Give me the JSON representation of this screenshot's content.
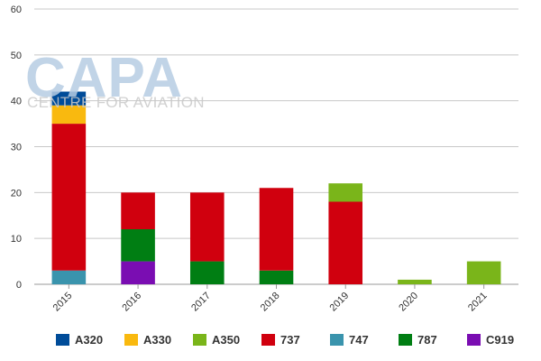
{
  "watermark": {
    "logo": "CAPA",
    "tagline": "CENTRE FOR AVIATION"
  },
  "chart_data": {
    "type": "bar",
    "stacked": true,
    "categories": [
      "2015",
      "2016",
      "2017",
      "2018",
      "2019",
      "2020",
      "2021"
    ],
    "ylim": [
      0,
      60
    ],
    "yticks": [
      0,
      10,
      20,
      30,
      40,
      50,
      60
    ],
    "grid": true,
    "legend_position": "bottom",
    "series": [
      {
        "name": "747",
        "color": "#3a94ad",
        "values": [
          3,
          0,
          0,
          0,
          0,
          0,
          0
        ]
      },
      {
        "name": "C919",
        "color": "#7a0db2",
        "values": [
          0,
          5,
          0,
          0,
          0,
          0,
          0
        ]
      },
      {
        "name": "787",
        "color": "#007e13",
        "values": [
          0,
          7,
          5,
          3,
          0,
          0,
          0
        ]
      },
      {
        "name": "737",
        "color": "#d0000e",
        "values": [
          32,
          8,
          15,
          18,
          18,
          0,
          0
        ]
      },
      {
        "name": "A330",
        "color": "#f9b90f",
        "values": [
          4,
          0,
          0,
          0,
          0,
          0,
          0
        ]
      },
      {
        "name": "A320",
        "color": "#004c99",
        "values": [
          3,
          0,
          0,
          0,
          0,
          0,
          0
        ]
      },
      {
        "name": "A350",
        "color": "#7ab51a",
        "values": [
          0,
          0,
          0,
          0,
          4,
          1,
          5
        ]
      }
    ],
    "legend_order": [
      "A320",
      "A330",
      "A350",
      "737",
      "747",
      "787",
      "C919"
    ]
  }
}
